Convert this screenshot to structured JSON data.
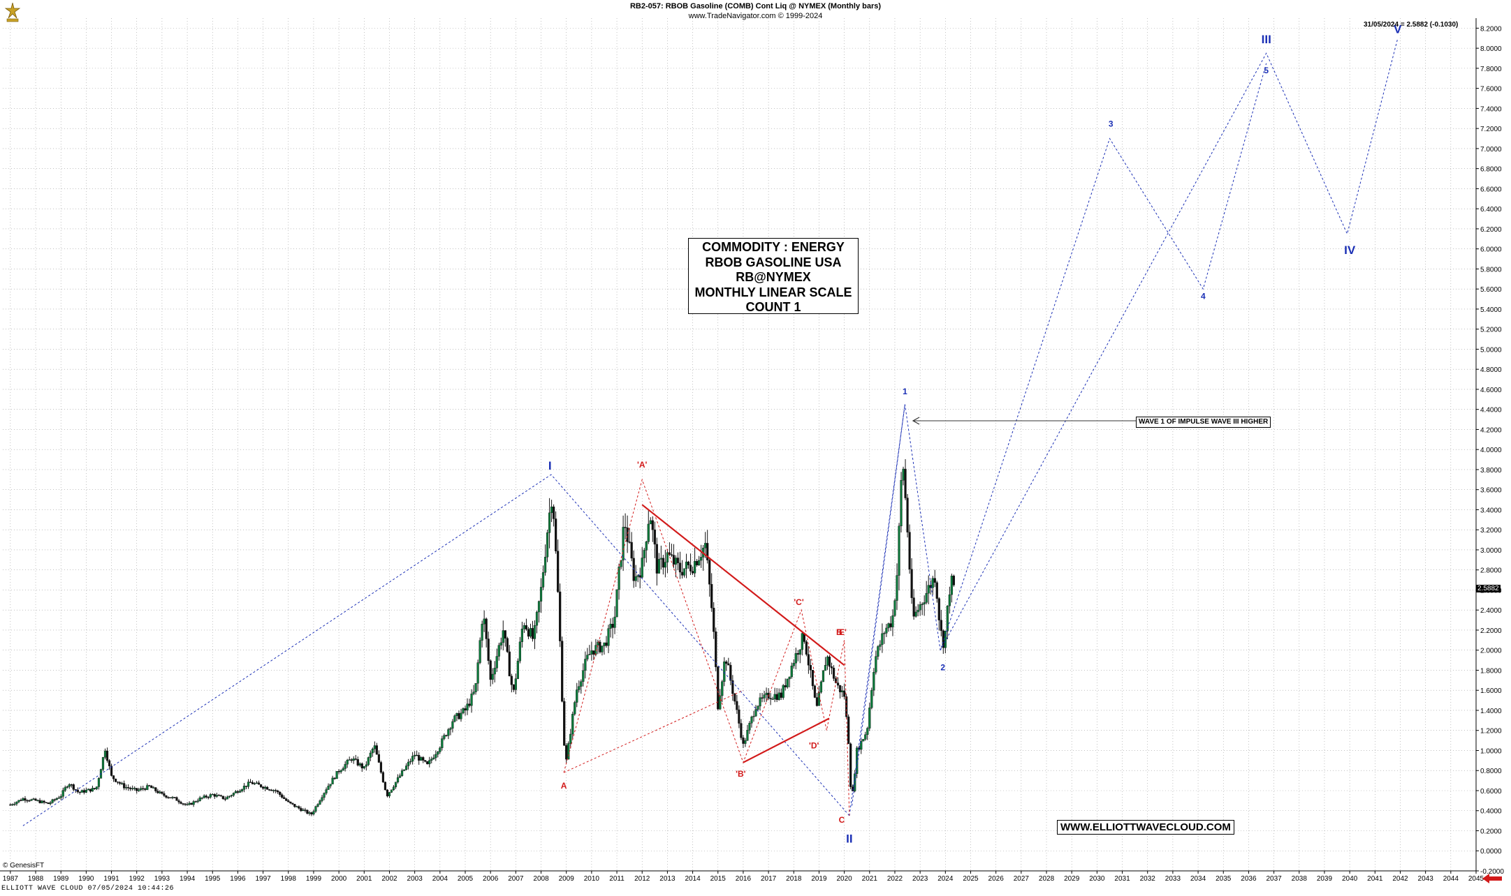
{
  "header": {
    "line1": "RB2-057:  RBOB Gasoline (COMB) Cont Liq @ NYMEX  (Monthly bars)",
    "line2": "www.TradeNavigator.com © 1999-2024",
    "last_info": "31/05/2024 = 2.5882 (-0.1030)",
    "last_value": "2.5882"
  },
  "info_box": [
    "COMMODITY : ENERGY",
    "RBOB GASOLINE USA",
    "RB@NYMEX",
    "MONTHLY LINEAR SCALE",
    "COUNT 1"
  ],
  "url_box": "WWW.ELLIOTTWAVECLOUD.COM",
  "callout": "WAVE 1 OF IMPULSE WAVE III HIGHER",
  "copyright": "© GenesisFT",
  "footer": "ELLIOTT WAVE CLOUD   07/05/2024 10:44:26",
  "colors": {
    "up": "#0a7a3a",
    "down": "#111111",
    "blue": "#1a2fb5",
    "red": "#d21a1a",
    "grid": "#9a9a9a"
  },
  "icons": [
    "trade-navigator-logo-icon",
    "arrow-left-icon",
    "scroll-arrow-icon"
  ],
  "chart_data": {
    "type": "candlestick",
    "title": "RB2-057:  RBOB Gasoline (COMB) Cont Liq @ NYMEX  (Monthly bars)",
    "xlim": [
      1986.7,
      2045.0
    ],
    "ylim": [
      -0.2,
      8.3
    ],
    "y_ticks": [
      "8.2000",
      "8.0000",
      "7.8000",
      "7.6000",
      "7.4000",
      "7.2000",
      "7.0000",
      "6.8000",
      "6.6000",
      "6.4000",
      "6.2000",
      "6.0000",
      "5.8000",
      "5.6000",
      "5.4000",
      "5.2000",
      "5.0000",
      "4.8000",
      "4.6000",
      "4.4000",
      "4.2000",
      "4.0000",
      "3.8000",
      "3.6000",
      "3.4000",
      "3.2000",
      "3.0000",
      "2.8000",
      "2.6000",
      "2.4000",
      "2.2000",
      "2.0000",
      "1.8000",
      "1.6000",
      "1.4000",
      "1.2000",
      "1.0000",
      "0.8000",
      "0.6000",
      "0.4000",
      "0.2000",
      "0.0000",
      "-0.2000"
    ],
    "x_ticks": [
      "1987",
      "1988",
      "1989",
      "1990",
      "1991",
      "1992",
      "1993",
      "1994",
      "1995",
      "1996",
      "1997",
      "1998",
      "1999",
      "2000",
      "2001",
      "2002",
      "2003",
      "2004",
      "2005",
      "2006",
      "2007",
      "2008",
      "2009",
      "2010",
      "2011",
      "2012",
      "2013",
      "2014",
      "2015",
      "2016",
      "2017",
      "2018",
      "2019",
      "2020",
      "2021",
      "2022",
      "2023",
      "2024",
      "2025",
      "2026",
      "2027",
      "2028",
      "2029",
      "2030",
      "2031",
      "2032",
      "2033",
      "2034",
      "2035",
      "2036",
      "2037",
      "2038",
      "2039",
      "2040",
      "2041",
      "2042",
      "2043",
      "2044",
      "2045"
    ],
    "price_path": [
      [
        1987.0,
        0.46
      ],
      [
        1987.5,
        0.52
      ],
      [
        1988.0,
        0.5
      ],
      [
        1988.5,
        0.47
      ],
      [
        1989.0,
        0.55
      ],
      [
        1989.3,
        0.68
      ],
      [
        1989.7,
        0.58
      ],
      [
        1990.0,
        0.6
      ],
      [
        1990.4,
        0.62
      ],
      [
        1990.75,
        1.02
      ],
      [
        1991.0,
        0.74
      ],
      [
        1991.5,
        0.64
      ],
      [
        1992.0,
        0.6
      ],
      [
        1992.5,
        0.64
      ],
      [
        1993.0,
        0.56
      ],
      [
        1993.5,
        0.52
      ],
      [
        1994.0,
        0.45
      ],
      [
        1994.5,
        0.52
      ],
      [
        1995.0,
        0.56
      ],
      [
        1995.5,
        0.52
      ],
      [
        1996.0,
        0.6
      ],
      [
        1996.5,
        0.68
      ],
      [
        1997.0,
        0.64
      ],
      [
        1997.5,
        0.6
      ],
      [
        1998.0,
        0.48
      ],
      [
        1998.9,
        0.36
      ],
      [
        1999.5,
        0.62
      ],
      [
        2000.0,
        0.8
      ],
      [
        2000.5,
        0.92
      ],
      [
        2001.0,
        0.82
      ],
      [
        2001.4,
        1.05
      ],
      [
        2001.9,
        0.55
      ],
      [
        2002.5,
        0.78
      ],
      [
        2003.0,
        0.96
      ],
      [
        2003.5,
        0.85
      ],
      [
        2004.0,
        1.05
      ],
      [
        2004.5,
        1.3
      ],
      [
        2005.0,
        1.4
      ],
      [
        2005.4,
        1.6
      ],
      [
        2005.7,
        2.4
      ],
      [
        2006.0,
        1.7
      ],
      [
        2006.5,
        2.2
      ],
      [
        2006.9,
        1.55
      ],
      [
        2007.3,
        2.3
      ],
      [
        2007.7,
        2.1
      ],
      [
        2008.0,
        2.6
      ],
      [
        2008.25,
        3.2
      ],
      [
        2008.45,
        3.6
      ],
      [
        2008.7,
        2.4
      ],
      [
        2008.9,
        1.1
      ],
      [
        2009.0,
        0.9
      ],
      [
        2009.4,
        1.6
      ],
      [
        2009.8,
        1.9
      ],
      [
        2010.0,
        2.0
      ],
      [
        2010.5,
        2.05
      ],
      [
        2010.9,
        2.3
      ],
      [
        2011.3,
        3.3
      ],
      [
        2011.7,
        2.7
      ],
      [
        2012.0,
        2.85
      ],
      [
        2012.3,
        3.4
      ],
      [
        2012.6,
        2.8
      ],
      [
        2013.0,
        2.95
      ],
      [
        2013.5,
        2.8
      ],
      [
        2014.0,
        2.85
      ],
      [
        2014.5,
        3.05
      ],
      [
        2014.8,
        2.3
      ],
      [
        2015.0,
        1.45
      ],
      [
        2015.3,
        1.95
      ],
      [
        2015.7,
        1.45
      ],
      [
        2016.0,
        1.05
      ],
      [
        2016.5,
        1.45
      ],
      [
        2017.0,
        1.55
      ],
      [
        2017.5,
        1.55
      ],
      [
        2018.0,
        1.9
      ],
      [
        2018.4,
        2.15
      ],
      [
        2018.9,
        1.4
      ],
      [
        2019.3,
        1.95
      ],
      [
        2019.7,
        1.65
      ],
      [
        2020.0,
        1.55
      ],
      [
        2020.2,
        1.0
      ],
      [
        2020.28,
        0.45
      ],
      [
        2020.5,
        1.0
      ],
      [
        2020.9,
        1.2
      ],
      [
        2021.2,
        1.9
      ],
      [
        2021.6,
        2.2
      ],
      [
        2021.9,
        2.3
      ],
      [
        2022.1,
        2.8
      ],
      [
        2022.3,
        3.95
      ],
      [
        2022.5,
        3.2
      ],
      [
        2022.7,
        2.3
      ],
      [
        2022.9,
        2.4
      ],
      [
        2023.2,
        2.55
      ],
      [
        2023.6,
        2.75
      ],
      [
        2023.8,
        2.2
      ],
      [
        2023.95,
        2.05
      ],
      [
        2024.2,
        2.7
      ],
      [
        2024.4,
        2.59
      ]
    ],
    "wave_lines": [
      {
        "color": "blue",
        "points": [
          [
            1987.5,
            0.25
          ],
          [
            2008.4,
            3.75
          ],
          [
            2020.2,
            0.35
          ]
        ]
      },
      {
        "color": "blue",
        "points": [
          [
            2020.2,
            0.35
          ],
          [
            2022.4,
            4.45
          ],
          [
            2023.8,
            2.0
          ],
          [
            2030.5,
            7.1
          ],
          [
            2034.2,
            5.6
          ],
          [
            2036.7,
            7.85
          ]
        ]
      },
      {
        "color": "blue",
        "points": [
          [
            2020.3,
            0.45
          ],
          [
            2022.4,
            4.45
          ]
        ]
      },
      {
        "color": "blue",
        "points": [
          [
            2023.8,
            2.0
          ],
          [
            2036.7,
            7.95
          ],
          [
            2039.9,
            6.15
          ],
          [
            2041.9,
            8.1
          ]
        ]
      },
      {
        "color": "red",
        "points": [
          [
            2008.9,
            0.78
          ],
          [
            2012.0,
            3.7
          ],
          [
            2016.0,
            0.88
          ],
          [
            2018.3,
            2.4
          ],
          [
            2019.3,
            1.2
          ],
          [
            2020.0,
            2.1
          ],
          [
            2020.2,
            0.35
          ]
        ]
      },
      {
        "color": "red",
        "points": [
          [
            2008.9,
            0.78
          ],
          [
            2016.0,
            1.6
          ]
        ]
      }
    ],
    "trendlines": [
      {
        "color": "red",
        "points": [
          [
            2012.0,
            3.45
          ],
          [
            2020.0,
            1.85
          ]
        ]
      },
      {
        "color": "red",
        "points": [
          [
            2016.0,
            0.88
          ],
          [
            2019.4,
            1.32
          ]
        ]
      }
    ],
    "labels": [
      {
        "text": "I",
        "x": 2008.35,
        "y": 3.8,
        "color": "blue"
      },
      {
        "text": "II",
        "x": 2020.2,
        "y": 0.08,
        "color": "blue"
      },
      {
        "text": "III",
        "x": 2036.7,
        "y": 8.05,
        "color": "blue"
      },
      {
        "text": "IV",
        "x": 2040.0,
        "y": 5.95,
        "color": "blue"
      },
      {
        "text": "V",
        "x": 2041.9,
        "y": 8.15,
        "color": "blue"
      },
      {
        "text": "1",
        "x": 2022.4,
        "y": 4.55,
        "color": "blue"
      },
      {
        "text": "2",
        "x": 2023.9,
        "y": 1.8,
        "color": "blue"
      },
      {
        "text": "3",
        "x": 2030.55,
        "y": 7.22,
        "color": "blue"
      },
      {
        "text": "4",
        "x": 2034.2,
        "y": 5.5,
        "color": "blue"
      },
      {
        "text": "5",
        "x": 2036.7,
        "y": 7.75,
        "color": "blue"
      },
      {
        "text": "A",
        "x": 2008.9,
        "y": 0.62,
        "color": "red"
      },
      {
        "text": "'A'",
        "x": 2012.0,
        "y": 3.82,
        "color": "red"
      },
      {
        "text": "'B'",
        "x": 2015.9,
        "y": 0.74,
        "color": "red"
      },
      {
        "text": "'C'",
        "x": 2018.2,
        "y": 2.45,
        "color": "red"
      },
      {
        "text": "'D'",
        "x": 2018.8,
        "y": 1.02,
        "color": "red"
      },
      {
        "text": "'E'",
        "x": 2019.9,
        "y": 2.15,
        "color": "red"
      },
      {
        "text": "B",
        "x": 2019.8,
        "y": 2.15,
        "color": "red"
      },
      {
        "text": "C",
        "x": 2019.9,
        "y": 0.28,
        "color": "red"
      }
    ],
    "grid": true,
    "scale": "linear"
  }
}
